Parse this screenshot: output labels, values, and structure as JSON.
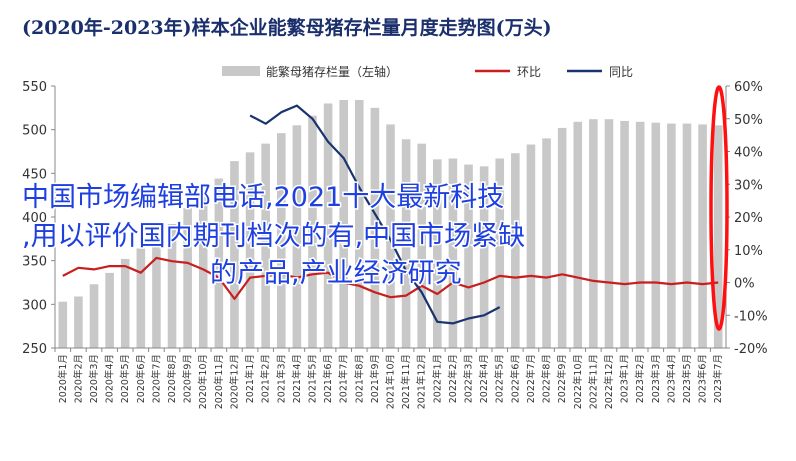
{
  "chart_data": {
    "type": "bar",
    "title": "(2020年-2023年)样本企业能繁母猪存栏量月度走势图(万头)",
    "legend": [
      "能繁母猪存栏量（左轴）",
      "环比",
      "同比"
    ],
    "categories": [
      "2020年1月",
      "2020年2月",
      "2020年3月",
      "2020年4月",
      "2020年5月",
      "2020年6月",
      "2020年7月",
      "2020年8月",
      "2020年9月",
      "2020年10月",
      "2020年11月",
      "2020年12月",
      "2021年1月",
      "2021年2月",
      "2021年3月",
      "2021年4月",
      "2021年5月",
      "2021年6月",
      "2021年7月",
      "2021年8月",
      "2021年9月",
      "2021年10月",
      "2021年11月",
      "2021年12月",
      "2022年1月",
      "2022年2月",
      "2022年3月",
      "2022年4月",
      "2022年5月",
      "2022年6月",
      "2022年7月",
      "2022年8月",
      "2022年9月",
      "2022年10月",
      "2022年11月",
      "2022年12月",
      "2023年1月",
      "2023年2月",
      "2023年3月",
      "2023年4月",
      "2023年5月",
      "2023年6月",
      "2023年7月"
    ],
    "series": [
      {
        "name": "能繁母猪存栏量（左轴）",
        "axis": "left",
        "type": "bar",
        "color": "#c8c8c8",
        "values": [
          303,
          309,
          323,
          336,
          352,
          364,
          374,
          392,
          410,
          428,
          444,
          464,
          474,
          484,
          496,
          505,
          516,
          530,
          534,
          534,
          525,
          506,
          489,
          484,
          466,
          467,
          460,
          458,
          467,
          473,
          483,
          490,
          502,
          509,
          512,
          512,
          510,
          509,
          508,
          507,
          507,
          506,
          505
        ]
      },
      {
        "name": "环比",
        "axis": "right",
        "type": "line",
        "color": "#c81e1e",
        "values": [
          2,
          4.5,
          4,
          5,
          5,
          3,
          7.5,
          6.5,
          6,
          4,
          1.5,
          -5,
          1.5,
          2,
          2.5,
          1.5,
          2.5,
          3,
          0,
          -1,
          -3,
          -4.5,
          -4,
          -1,
          -3.5,
          0,
          -1.5,
          0,
          2,
          1.5,
          2,
          1.5,
          2.5,
          1.5,
          0.5,
          0,
          -0.5,
          0,
          0,
          -0.5,
          0,
          -0.5,
          0
        ]
      },
      {
        "name": "同比",
        "axis": "right",
        "type": "line",
        "color": "#1a3470",
        "values": [
          null,
          null,
          null,
          null,
          null,
          null,
          null,
          null,
          null,
          null,
          null,
          null,
          51,
          48.5,
          52,
          54,
          50,
          43,
          38,
          29,
          21,
          13,
          3.5,
          -3,
          -12,
          -12.5,
          -11,
          -10,
          -7.5,
          null,
          null,
          null,
          null,
          null,
          null,
          null,
          null,
          null,
          null,
          null,
          null,
          null,
          null
        ]
      }
    ],
    "yleft": {
      "min": 250,
      "max": 550,
      "ticks": [
        250,
        300,
        350,
        400,
        450,
        500,
        550
      ]
    },
    "yright": {
      "min": -20,
      "max": 60,
      "ticks": [
        "-20%",
        "-10%",
        "0%",
        "10%",
        "20%",
        "30%",
        "40%",
        "50%",
        "60%"
      ]
    },
    "grid": false,
    "legend_position": "top-center",
    "annotation_ellipse_color": "#ff1010",
    "overlay_text": [
      "中国市场编辑部电话,2021十大最新科技",
      ",用以评价国内期刊档次的有,中国市场紧缺",
      "的产品,产业经济研究"
    ]
  }
}
